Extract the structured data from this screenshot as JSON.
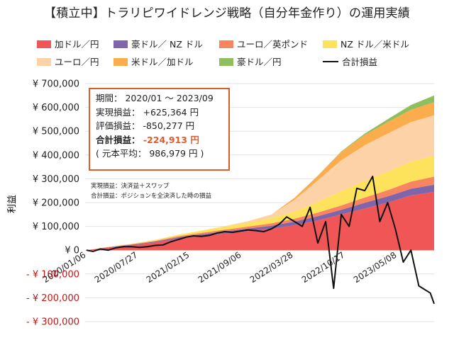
{
  "title": "【積立中】トラリピワイドレンジ戦略（自分年金作り）の運用実績",
  "legend": [
    {
      "label": "加ドル／円",
      "color": "#f05656"
    },
    {
      "label": "豪ドル／ NZ ドル",
      "color": "#7f65a9"
    },
    {
      "label": "ユーロ／英ポンド",
      "color": "#f98560"
    },
    {
      "label": "NZ ドル／米ドル",
      "color": "#fde35c"
    },
    {
      "label": "ユーロ／円",
      "color": "#fdd2a7"
    },
    {
      "label": "米ドル／加ドル",
      "color": "#fbad4d"
    },
    {
      "label": "豪ドル／円",
      "color": "#8fbe5e"
    },
    {
      "label": "合計損益",
      "color": "#111111"
    }
  ],
  "info": {
    "period": "期間： 2020/01 ～ 2023/09",
    "realized": "実現損益： +625,364 円",
    "unrealized": "評価損益： -850,277 円",
    "total_label": "合計損益：",
    "total_value": "-224,913 円",
    "principal": "( 元本平均： 986,979 円 )"
  },
  "notes": [
    "実現損益：決済益＋スワップ",
    "合計損益：ポジションを全決済した時の損益"
  ],
  "chart_data": {
    "type": "area",
    "ylabel": "利益",
    "ylim": [
      -300000,
      700000
    ],
    "yticks": [
      {
        "value": 700000,
        "label": "¥ 700,000",
        "color": "#222222"
      },
      {
        "value": 600000,
        "label": "¥ 600,000",
        "color": "#222222"
      },
      {
        "value": 500000,
        "label": "¥ 500,000",
        "color": "#222222"
      },
      {
        "value": 400000,
        "label": "¥ 400,000",
        "color": "#222222"
      },
      {
        "value": 300000,
        "label": "¥ 300,000",
        "color": "#222222"
      },
      {
        "value": 200000,
        "label": "¥ 200,000",
        "color": "#222222"
      },
      {
        "value": 100000,
        "label": "¥ 100,000",
        "color": "#222222"
      },
      {
        "value": 0,
        "label": "¥ 0",
        "color": "#222222"
      },
      {
        "value": -100000,
        "label": "- ¥ 100,000",
        "color": "#cc1111"
      },
      {
        "value": -200000,
        "label": "- ¥ 200,000",
        "color": "#cc1111"
      },
      {
        "value": -300000,
        "label": "- ¥ 300,000",
        "color": "#cc1111"
      }
    ],
    "xlim": [
      "2020-01-01",
      "2023-09-30"
    ],
    "xticks": [
      "2020/01/06",
      "2020/07/27",
      "2021/02/15",
      "2021/09/06",
      "2022/03/28",
      "2022/10/17",
      "2023/05/08"
    ],
    "x": [
      "2020-01-06",
      "2020-04-01",
      "2020-07-01",
      "2020-10-01",
      "2021-01-01",
      "2021-04-01",
      "2021-07-01",
      "2021-10-01",
      "2022-01-01",
      "2022-04-01",
      "2022-07-01",
      "2022-10-01",
      "2023-01-01",
      "2023-04-01",
      "2023-07-01",
      "2023-09-30"
    ],
    "series": [
      {
        "name": "加ドル／円",
        "color": "#f05656",
        "values": [
          0,
          10000,
          20000,
          32000,
          48000,
          60000,
          70000,
          80000,
          90000,
          105000,
          125000,
          150000,
          175000,
          200000,
          230000,
          245000
        ]
      },
      {
        "name": "豪ドル／ NZ ドル",
        "color": "#7f65a9",
        "values": [
          0,
          2000,
          3000,
          4000,
          6000,
          7000,
          9000,
          11000,
          13000,
          15000,
          18000,
          20000,
          24000,
          26000,
          28000,
          30000
        ]
      },
      {
        "name": "ユーロ／英ポンド",
        "color": "#f98560",
        "values": [
          0,
          1000,
          2000,
          3000,
          5000,
          6000,
          7000,
          8000,
          10000,
          12000,
          15000,
          18000,
          22000,
          26000,
          30000,
          34000
        ]
      },
      {
        "name": "NZ ドル／米ドル",
        "color": "#fde35c",
        "values": [
          0,
          1000,
          2000,
          4000,
          6000,
          9000,
          13000,
          17000,
          22000,
          30000,
          45000,
          60000,
          70000,
          78000,
          84000,
          88000
        ]
      },
      {
        "name": "ユーロ／円",
        "color": "#fdd2a7",
        "values": [
          0,
          0,
          0,
          0,
          0,
          0,
          2000,
          6000,
          15000,
          50000,
          90000,
          130000,
          150000,
          160000,
          166000,
          170000
        ]
      },
      {
        "name": "米ドル／加ドル",
        "color": "#fbad4d",
        "values": [
          0,
          0,
          0,
          0,
          0,
          0,
          0,
          0,
          0,
          8000,
          20000,
          35000,
          43000,
          48000,
          52000,
          55000
        ]
      },
      {
        "name": "豪ドル／円",
        "color": "#8fbe5e",
        "values": [
          0,
          0,
          0,
          0,
          0,
          0,
          0,
          0,
          0,
          0,
          0,
          2000,
          6000,
          12000,
          20000,
          28000
        ]
      }
    ],
    "total": {
      "name": "合計損益",
      "color": "#111111",
      "points": [
        [
          "2020-01-06",
          0
        ],
        [
          "2020-02-01",
          -5000
        ],
        [
          "2020-03-01",
          5000
        ],
        [
          "2020-04-01",
          0
        ],
        [
          "2020-05-01",
          10000
        ],
        [
          "2020-06-01",
          15000
        ],
        [
          "2020-07-01",
          15000
        ],
        [
          "2020-08-01",
          12000
        ],
        [
          "2020-09-01",
          15000
        ],
        [
          "2020-10-01",
          20000
        ],
        [
          "2020-11-01",
          22000
        ],
        [
          "2020-12-01",
          35000
        ],
        [
          "2021-01-01",
          45000
        ],
        [
          "2021-02-01",
          55000
        ],
        [
          "2021-03-01",
          60000
        ],
        [
          "2021-04-01",
          58000
        ],
        [
          "2021-05-01",
          62000
        ],
        [
          "2021-06-01",
          72000
        ],
        [
          "2021-07-01",
          78000
        ],
        [
          "2021-08-01",
          75000
        ],
        [
          "2021-09-01",
          80000
        ],
        [
          "2021-10-01",
          85000
        ],
        [
          "2021-11-01",
          82000
        ],
        [
          "2021-12-01",
          78000
        ],
        [
          "2022-01-01",
          90000
        ],
        [
          "2022-02-01",
          110000
        ],
        [
          "2022-03-01",
          140000
        ],
        [
          "2022-04-01",
          120000
        ],
        [
          "2022-05-01",
          100000
        ],
        [
          "2022-06-01",
          180000
        ],
        [
          "2022-07-01",
          30000
        ],
        [
          "2022-08-01",
          120000
        ],
        [
          "2022-09-01",
          -160000
        ],
        [
          "2022-10-01",
          150000
        ],
        [
          "2022-11-01",
          100000
        ],
        [
          "2022-12-01",
          260000
        ],
        [
          "2023-01-01",
          250000
        ],
        [
          "2023-02-01",
          310000
        ],
        [
          "2023-03-01",
          120000
        ],
        [
          "2023-04-01",
          200000
        ],
        [
          "2023-05-01",
          90000
        ],
        [
          "2023-06-01",
          -50000
        ],
        [
          "2023-07-01",
          0
        ],
        [
          "2023-08-01",
          -150000
        ],
        [
          "2023-09-15",
          -180000
        ],
        [
          "2023-09-30",
          -224913
        ]
      ]
    }
  }
}
